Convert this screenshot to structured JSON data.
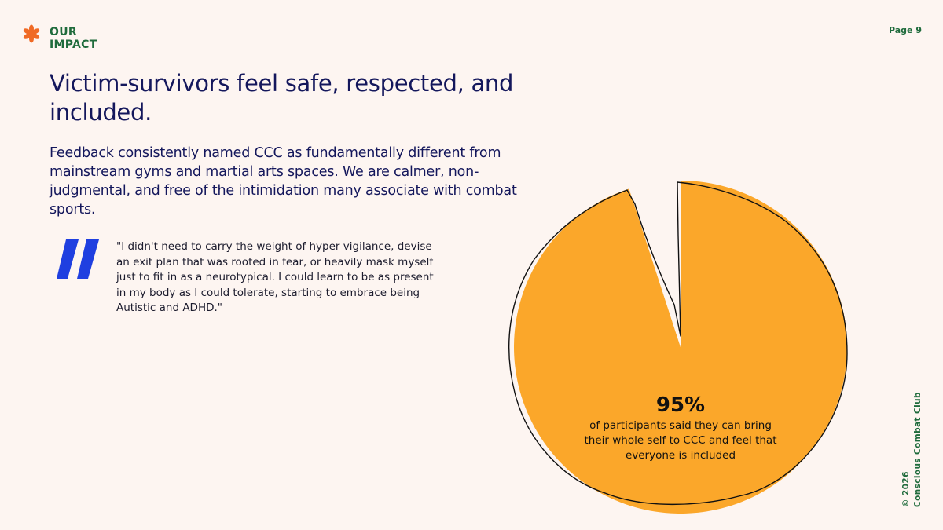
{
  "header": {
    "logo_icon": "asterisk-flower-icon",
    "logo_line1": "OUR",
    "logo_line2": "IMPACT",
    "page_label": "Page 9",
    "accent_green": "#1F6B3C",
    "accent_orange": "#F06A25"
  },
  "main": {
    "headline": "Victim-survivors feel safe, respected, and included.",
    "lead": "Feedback consistently named CCC as fundamentally different from mainstream gyms and martial arts spaces. We are calmer, non-judgmental, and free of the intimidation many associate with combat sports.",
    "quote_icon": "quotation-mark-icon",
    "quote_color": "#1F3FE0",
    "quote": "\"I didn't need to carry the weight of hyper vigilance, devise an exit plan that was rooted in fear, or heavily mask myself just to fit in as a neurotypical. I could learn to be as present in my body as I could tolerate, starting to embrace being Autistic and ADHD.\""
  },
  "stat": {
    "value": "95%",
    "description": "of participants said they can bring their whole self to CCC and feel that everyone is included"
  },
  "chart_data": {
    "type": "pie",
    "title": "",
    "slices": [
      {
        "value": 95,
        "color": "#FBA72A"
      },
      {
        "value": 5,
        "color": "#FDF5F1"
      }
    ]
  },
  "footer": {
    "copyright": "© 2026",
    "org": "Conscious Combat Club"
  }
}
